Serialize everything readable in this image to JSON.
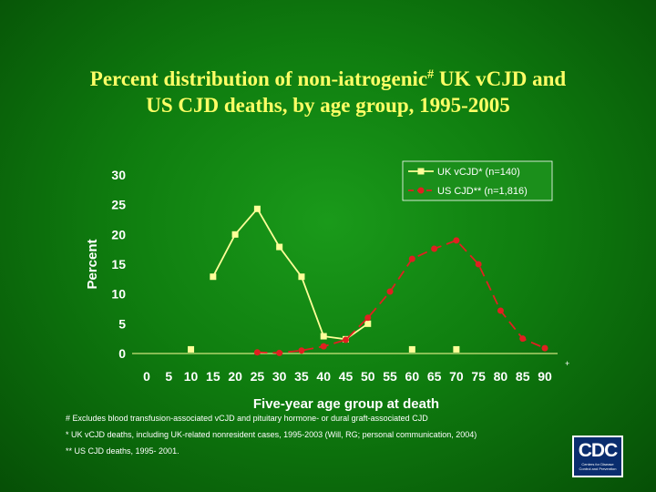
{
  "title_line1": "Percent distribution of non-iatrogenic",
  "title_mark": "#",
  "title_line1_end": " UK vCJD and",
  "title_line2": "US CJD deaths, by age group, 1995-2005",
  "chart_data": {
    "type": "line",
    "title": "Percent distribution of non-iatrogenic# UK vCJD and US CJD deaths, by age group, 1995-2005",
    "xlabel": "Five-year age group at death",
    "ylabel": "Percent",
    "ylim": [
      0,
      30
    ],
    "xlim": [
      0,
      90
    ],
    "yticks": [
      0,
      5,
      10,
      15,
      20,
      25,
      30
    ],
    "xticks": [
      0,
      5,
      10,
      15,
      20,
      25,
      30,
      35,
      40,
      45,
      50,
      55,
      60,
      65,
      70,
      75,
      80,
      85,
      90
    ],
    "legend_position": "top-right",
    "series": [
      {
        "name": "UK vCJD* (n=140)",
        "color": "#ffff99",
        "marker": "square",
        "line_style": "solid",
        "points": [
          {
            "x": 10,
            "y": 0.7,
            "isolated": true
          },
          {
            "x": 15,
            "y": 12.9
          },
          {
            "x": 20,
            "y": 20.0
          },
          {
            "x": 25,
            "y": 24.3
          },
          {
            "x": 30,
            "y": 17.9
          },
          {
            "x": 35,
            "y": 12.9
          },
          {
            "x": 40,
            "y": 2.9
          },
          {
            "x": 45,
            "y": 2.4
          },
          {
            "x": 50,
            "y": 5.0
          },
          {
            "x": 60,
            "y": 0.7,
            "isolated": true
          },
          {
            "x": 70,
            "y": 0.7,
            "isolated": true
          }
        ]
      },
      {
        "name": "US CJD** (n=1,816)",
        "color": "#e02020",
        "marker": "circle",
        "line_style": "dashed",
        "points": [
          {
            "x": 25,
            "y": 0.2
          },
          {
            "x": 30,
            "y": 0.1
          },
          {
            "x": 35,
            "y": 0.5
          },
          {
            "x": 40,
            "y": 1.2
          },
          {
            "x": 45,
            "y": 2.3
          },
          {
            "x": 50,
            "y": 6.0
          },
          {
            "x": 55,
            "y": 10.4
          },
          {
            "x": 60,
            "y": 15.9
          },
          {
            "x": 65,
            "y": 17.6
          },
          {
            "x": 70,
            "y": 19.0
          },
          {
            "x": 75,
            "y": 15.0
          },
          {
            "x": 80,
            "y": 7.2
          },
          {
            "x": 85,
            "y": 2.5
          },
          {
            "x": 90,
            "y": 0.9
          }
        ]
      }
    ]
  },
  "footnotes": [
    "# Excludes blood transfusion-associated vCJD and pituitary hormone- or dural graft-associated CJD",
    "* UK vCJD deaths, including UK-related nonresident cases, 1995-2003 (Will, RG; personal communication, 2004)",
    "** US CJD deaths, 1995- 2001."
  ],
  "plus_mark": "+",
  "logo": {
    "text": "CDC",
    "subtitle": "Centers for Disease Control and Prevention"
  },
  "colors": {
    "title": "#ffff66",
    "axis": "#ffff99",
    "tick_labels": "#ffffff",
    "background": "#0f7d0f"
  }
}
